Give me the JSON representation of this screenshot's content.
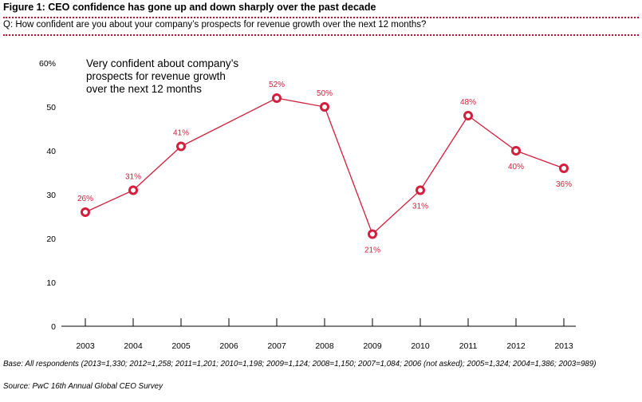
{
  "header": {
    "title": "Figure 1: CEO confidence has gone up and down sharply over the past decade",
    "question": "Q: How confident are you about your company’s prospects for revenue growth over the next 12 months?"
  },
  "footer": {
    "base": "Base: All respondents (2013=1,330; 2012=1,258; 2011=1,201; 2010=1,198; 2009=1,124; 2008=1,150; 2007=1,084; 2006 (not asked); 2005=1,324; 2004=1,386; 2003=989)",
    "source": "Source: PwC 16th Annual Global CEO Survey"
  },
  "colors": {
    "series": "#d21f3c",
    "divider": "#c8102e",
    "axis": "#000000"
  },
  "chart_data": {
    "type": "line",
    "title": "",
    "xlabel": "",
    "ylabel": "",
    "annotation": [
      "Very confident about company’s",
      "prospects for revenue growth",
      "over the next 12 months"
    ],
    "categories": [
      "2003",
      "2004",
      "2005",
      "2006",
      "2007",
      "2008",
      "2009",
      "2010",
      "2011",
      "2012",
      "2013"
    ],
    "y_ticks": [
      0,
      10,
      20,
      30,
      40,
      50,
      60
    ],
    "y_tick_labels": [
      "0",
      "10",
      "20",
      "30",
      "40",
      "50",
      "60%"
    ],
    "ylim": [
      0,
      60
    ],
    "grid": false,
    "legend": "none",
    "series": [
      {
        "values": [
          26,
          31,
          41,
          null,
          52,
          50,
          21,
          31,
          48,
          40,
          36
        ],
        "labels": [
          "26%",
          "31%",
          "41%",
          "",
          "52%",
          "50%",
          "21%",
          "31%",
          "48%",
          "40%",
          "36%"
        ],
        "label_positions": [
          "above",
          "above",
          "above",
          "",
          "above",
          "above",
          "below",
          "below",
          "above",
          "below",
          "below"
        ]
      }
    ]
  }
}
